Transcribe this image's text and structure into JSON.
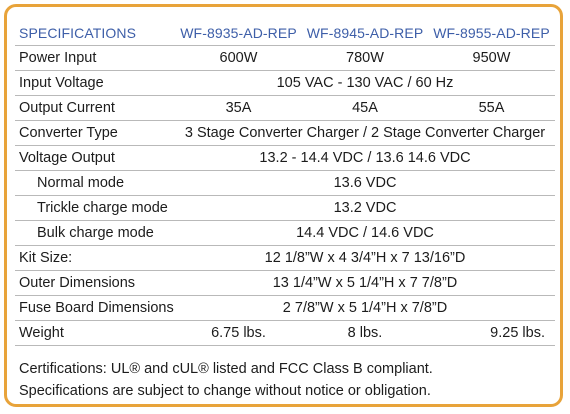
{
  "header": {
    "title": "SPECIFICATIONS",
    "models": [
      "WF-8935-AD-REP",
      "WF-8945-AD-REP",
      "WF-8955-AD-REP"
    ]
  },
  "rows": [
    {
      "label": "Power Input",
      "values": [
        "600W",
        "780W",
        "950W"
      ]
    },
    {
      "label": "Input Voltage",
      "span": "105 VAC - 130 VAC / 60 Hz"
    },
    {
      "label": "Output Current",
      "values": [
        "35A",
        "45A",
        "55A"
      ]
    },
    {
      "label": "Converter Type",
      "span": "3 Stage Converter Charger / 2 Stage Converter Charger"
    },
    {
      "label": "Voltage Output",
      "span": "13.2 - 14.4 VDC / 13.6  14.6 VDC"
    },
    {
      "label": "Normal mode",
      "span": "13.6 VDC"
    },
    {
      "label": "Trickle charge mode",
      "span": "13.2 VDC"
    },
    {
      "label": "Bulk charge mode",
      "span": "14.4 VDC / 14.6 VDC"
    },
    {
      "label": "Kit Size:",
      "span": "12 1/8”W x 4 3/4”H x 7 13/16”D"
    },
    {
      "label": "Outer Dimensions",
      "span": "13 1/4”W x 5 1/4”H x 7 7/8”D"
    },
    {
      "label": "Fuse Board Dimensions",
      "span": "2 7/8”W x 5 1/4”H x 7/8”D"
    },
    {
      "label": "Weight",
      "values": [
        "6.75 lbs.",
        "8 lbs.",
        "9.25 lbs."
      ]
    }
  ],
  "notes": [
    "Certifications: UL® and cUL® listed and FCC Class B compliant.",
    "Specifications are subject to change without notice or obligation."
  ],
  "colors": {
    "frame_border": "#e8a33a",
    "header_text": "#3d5ea8",
    "rule": "#b9b9b9"
  }
}
